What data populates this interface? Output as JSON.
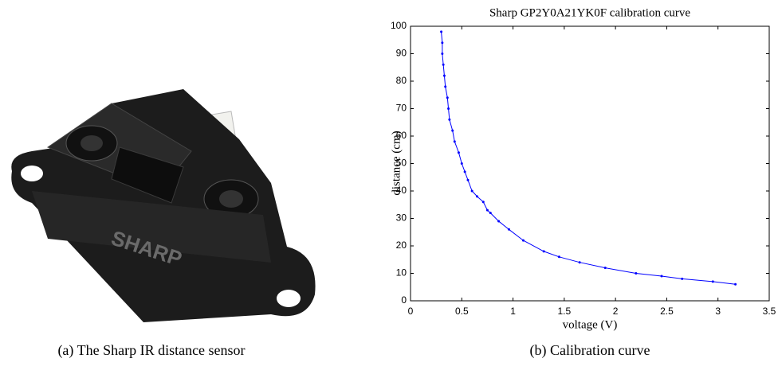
{
  "captions": [
    "(a) The Sharp IR distance sensor",
    "(b) Calibration curve"
  ],
  "chart_data": {
    "type": "line",
    "title": "Sharp GP2Y0A21YK0F calibration curve",
    "x_label": "voltage (V)",
    "y_label": "distance (cm)",
    "x": [
      0.3,
      0.31,
      0.31,
      0.32,
      0.33,
      0.34,
      0.36,
      0.37,
      0.38,
      0.41,
      0.43,
      0.47,
      0.5,
      0.53,
      0.56,
      0.6,
      0.65,
      0.71,
      0.75,
      0.78,
      0.86,
      0.96,
      1.1,
      1.3,
      1.45,
      1.65,
      1.9,
      2.2,
      2.45,
      2.65,
      2.95,
      3.17
    ],
    "values": [
      98,
      94,
      90,
      86,
      82,
      78,
      74,
      70,
      66,
      62,
      58,
      54,
      50,
      47,
      44,
      40,
      38,
      36,
      33,
      32,
      29,
      26,
      22,
      18,
      16,
      14,
      12,
      10,
      9,
      8,
      7,
      6
    ],
    "color": "#0000ff",
    "xlim": [
      0,
      3.5
    ],
    "xticks": [
      0,
      0.5,
      1,
      1.5,
      2,
      2.5,
      3,
      3.5
    ],
    "ylim": [
      0,
      100
    ],
    "yticks": [
      0,
      10,
      20,
      30,
      40,
      50,
      60,
      70,
      80,
      90,
      100
    ]
  }
}
